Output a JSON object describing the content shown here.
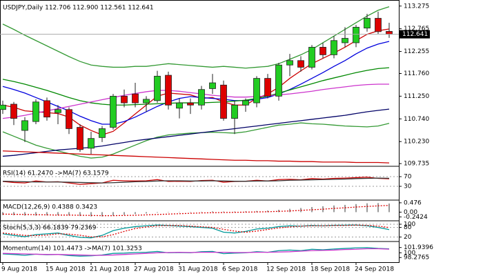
{
  "chart_data": [
    {
      "type": "candlestick",
      "title": "USDJPY,Daily  112.706 112.900 112.561 112.641",
      "categories": [
        "9 Aug 2018",
        null,
        null,
        null,
        "15 Aug 2018",
        null,
        null,
        null,
        "21 Aug 2018",
        null,
        null,
        null,
        "27 Aug 2018",
        null,
        null,
        null,
        "31 Aug 2018",
        null,
        null,
        null,
        "6 Sep 2018",
        null,
        null,
        null,
        "12 Sep 2018",
        null,
        null,
        null,
        "18 Sep 2018",
        null,
        null,
        null,
        "24 Sep 2018",
        null,
        null,
        null
      ],
      "open": [
        110.95,
        111.07,
        110.48,
        110.68,
        111.15,
        110.88,
        110.95,
        110.55,
        110.08,
        110.32,
        110.55,
        111.25,
        111.3,
        111.1,
        111.15,
        111.72,
        110.98,
        111.1,
        111.05,
        111.42,
        111.5,
        110.75,
        111.05,
        111.1,
        111.65,
        111.25,
        111.95,
        112.05,
        111.9,
        112.35,
        112.18,
        112.45,
        112.45,
        112.78,
        113.0,
        112.706
      ],
      "high": [
        111.15,
        111.12,
        110.78,
        111.18,
        111.22,
        111.05,
        111.0,
        110.62,
        110.45,
        110.58,
        111.3,
        111.4,
        111.55,
        111.25,
        111.82,
        111.8,
        111.2,
        111.2,
        111.48,
        111.75,
        111.6,
        111.15,
        111.2,
        111.7,
        111.75,
        112.0,
        112.2,
        112.15,
        112.4,
        112.45,
        112.6,
        112.8,
        112.85,
        113.1,
        113.15,
        112.9
      ],
      "low": [
        110.85,
        110.6,
        110.22,
        110.62,
        110.7,
        110.62,
        110.4,
        110.0,
        109.95,
        110.22,
        110.5,
        111.0,
        111.0,
        110.9,
        111.1,
        110.95,
        110.75,
        110.85,
        110.95,
        111.3,
        110.7,
        110.4,
        110.9,
        111.0,
        111.2,
        111.15,
        111.7,
        111.8,
        111.85,
        112.1,
        112.1,
        112.35,
        112.35,
        112.7,
        112.65,
        112.561
      ],
      "close": [
        111.05,
        110.75,
        110.7,
        111.12,
        110.78,
        110.95,
        110.52,
        110.05,
        110.3,
        110.52,
        111.25,
        111.1,
        111.1,
        111.18,
        111.7,
        111.05,
        111.1,
        111.05,
        111.4,
        111.55,
        110.75,
        111.05,
        111.15,
        111.65,
        111.25,
        111.95,
        112.05,
        111.9,
        112.35,
        112.18,
        112.5,
        112.55,
        112.8,
        113.0,
        112.7,
        112.641
      ],
      "up_color": "#22cc22",
      "down_color": "#dd0000",
      "overlays": [
        {
          "color": "#339933",
          "values": [
            112.87,
            112.75,
            112.62,
            112.5,
            112.38,
            112.26,
            112.14,
            112.03,
            111.95,
            111.92,
            111.9,
            111.9,
            111.92,
            111.92,
            111.95,
            111.98,
            111.96,
            111.94,
            111.92,
            111.9,
            111.92,
            111.9,
            111.88,
            111.9,
            111.92,
            111.98,
            112.08,
            112.18,
            112.3,
            112.45,
            112.6,
            112.75,
            112.9,
            113.05,
            113.18,
            113.26
          ]
        },
        {
          "color": "#339933",
          "values": [
            110.45,
            110.35,
            110.25,
            110.15,
            110.08,
            110.02,
            109.96,
            109.9,
            109.86,
            109.88,
            109.95,
            110.05,
            110.15,
            110.25,
            110.33,
            110.38,
            110.4,
            110.42,
            110.43,
            110.44,
            110.43,
            110.42,
            110.45,
            110.5,
            110.55,
            110.6,
            110.62,
            110.65,
            110.63,
            110.62,
            110.6,
            110.58,
            110.57,
            110.56,
            110.58,
            110.64
          ]
        },
        {
          "color": "#cc0000",
          "values": [
            111.05,
            111.0,
            110.92,
            110.9,
            110.88,
            110.86,
            110.78,
            110.6,
            110.48,
            110.38,
            110.46,
            110.65,
            110.85,
            111.05,
            111.25,
            111.32,
            111.3,
            111.28,
            111.2,
            111.22,
            111.12,
            111.05,
            111.05,
            111.2,
            111.3,
            111.45,
            111.65,
            111.82,
            111.98,
            112.1,
            112.22,
            112.35,
            112.5,
            112.64,
            112.72,
            112.76
          ]
        },
        {
          "color": "#0000dd",
          "values": [
            111.47,
            111.4,
            111.32,
            111.22,
            111.12,
            111.02,
            110.92,
            110.8,
            110.7,
            110.62,
            110.62,
            110.68,
            110.78,
            110.9,
            111.02,
            111.12,
            111.2,
            111.24,
            111.22,
            111.2,
            111.18,
            111.15,
            111.15,
            111.18,
            111.22,
            111.3,
            111.4,
            111.52,
            111.65,
            111.78,
            111.92,
            112.05,
            112.2,
            112.33,
            112.42,
            112.48
          ]
        },
        {
          "color": "#008800",
          "values": [
            111.63,
            111.58,
            111.52,
            111.45,
            111.38,
            111.3,
            111.22,
            111.15,
            111.1,
            111.07,
            111.05,
            111.05,
            111.06,
            111.07,
            111.08,
            111.09,
            111.1,
            111.1,
            111.1,
            111.11,
            111.12,
            111.14,
            111.16,
            111.2,
            111.25,
            111.32,
            111.39,
            111.46,
            111.53,
            111.6,
            111.66,
            111.72,
            111.78,
            111.83,
            111.87,
            111.89
          ]
        },
        {
          "color": "#cc33cc",
          "values": [
            110.75,
            110.78,
            110.82,
            110.87,
            110.92,
            110.97,
            111.02,
            111.07,
            111.12,
            111.17,
            111.22,
            111.27,
            111.31,
            111.35,
            111.38,
            111.38,
            111.36,
            111.33,
            111.3,
            111.27,
            111.25,
            111.23,
            111.23,
            111.24,
            111.26,
            111.28,
            111.3,
            111.33,
            111.36,
            111.4,
            111.43,
            111.46,
            111.49,
            111.51,
            111.52,
            111.52
          ]
        },
        {
          "color": "#000066",
          "values": [
            109.9,
            109.92,
            109.95,
            109.98,
            110.01,
            110.04,
            110.06,
            110.08,
            110.1,
            110.13,
            110.17,
            110.21,
            110.25,
            110.28,
            110.31,
            110.34,
            110.37,
            110.4,
            110.43,
            110.46,
            110.49,
            110.52,
            110.55,
            110.58,
            110.61,
            110.64,
            110.67,
            110.7,
            110.73,
            110.76,
            110.79,
            110.82,
            110.86,
            110.9,
            110.93,
            110.96
          ]
        },
        {
          "color": "#cc0000",
          "values": [
            110.02,
            110.01,
            110.0,
            109.99,
            109.98,
            109.97,
            109.96,
            109.95,
            109.94,
            109.93,
            109.92,
            109.91,
            109.9,
            109.89,
            109.88,
            109.87,
            109.86,
            109.85,
            109.84,
            109.83,
            109.82,
            109.81,
            109.81,
            109.8,
            109.8,
            109.79,
            109.79,
            109.78,
            109.78,
            109.77,
            109.77,
            109.77,
            109.76,
            109.76,
            109.76,
            109.75
          ]
        }
      ],
      "ylim": [
        109.69,
        113.38
      ],
      "yticks": [
        113.275,
        112.765,
        112.255,
        {
          "value": 111.76,
          "label": "111.760"
        },
        {
          "value": 111.25,
          "label": "111.250"
        },
        {
          "value": 110.74,
          "label": "110.740"
        },
        {
          "value": 110.23,
          "label": "110.230"
        },
        109.735
      ]
    },
    {
      "type": "line",
      "title": "RSI(14) 61.2470 ->MA(7) 63.1579",
      "ylim": [
        -27,
        110
      ],
      "yticks": [
        70,
        30
      ],
      "grid": true,
      "series": [
        {
          "color": "#cc0000",
          "values": [
            50,
            46,
            44,
            52,
            48,
            49,
            44,
            38,
            41,
            44,
            55,
            53,
            52,
            53,
            58,
            50,
            51,
            50,
            54,
            55,
            47,
            50,
            51,
            55,
            52,
            58,
            59,
            57,
            62,
            60,
            63,
            64,
            66,
            68,
            63,
            61.247
          ]
        },
        {
          "color": "#333333",
          "values": [
            51,
            50,
            49,
            48,
            48,
            48,
            47,
            46,
            45,
            44,
            45,
            47,
            49,
            50,
            52,
            53,
            53,
            52,
            52,
            53,
            52,
            51,
            51,
            52,
            52,
            53,
            55,
            56,
            57,
            58,
            59,
            60,
            62,
            63,
            64,
            63.1579
          ]
        }
      ]
    },
    {
      "type": "macd",
      "title": "MACD(12,26,9) 0.4388 0.3423",
      "ylim": [
        -0.442,
        0.578
      ],
      "yticks": [
        0.476,
        {
          "value": 0,
          "label": "0.00"
        },
        -0.2424
      ],
      "grid": false,
      "series": [
        {
          "type": "bar",
          "color": "#999999",
          "values": [
            -0.15,
            -0.16,
            -0.18,
            -0.18,
            -0.17,
            -0.16,
            -0.17,
            -0.2,
            -0.22,
            -0.22,
            -0.18,
            -0.14,
            -0.1,
            -0.07,
            -0.03,
            -0.01,
            0.0,
            0.01,
            0.02,
            0.04,
            0.03,
            0.03,
            0.04,
            0.06,
            0.08,
            0.12,
            0.17,
            0.21,
            0.26,
            0.3,
            0.34,
            0.37,
            0.41,
            0.45,
            0.46,
            0.4388
          ]
        },
        {
          "type": "line",
          "dashed": true,
          "color": "#dd0000",
          "values": [
            -0.1,
            -0.11,
            -0.12,
            -0.13,
            -0.14,
            -0.15,
            -0.15,
            -0.16,
            -0.17,
            -0.18,
            -0.18,
            -0.17,
            -0.16,
            -0.14,
            -0.12,
            -0.1,
            -0.08,
            -0.06,
            -0.04,
            -0.03,
            -0.02,
            -0.01,
            0.0,
            0.01,
            0.02,
            0.04,
            0.06,
            0.09,
            0.12,
            0.15,
            0.19,
            0.22,
            0.26,
            0.29,
            0.32,
            0.3423
          ]
        }
      ]
    },
    {
      "type": "line",
      "title": "Stoch(5,3,3) 66.1839 79.2369",
      "ylim": [
        -8,
        117
      ],
      "yticks": [
        100,
        80,
        20
      ],
      "grid": true,
      "series": [
        {
          "color": "#009999",
          "values": [
            40,
            30,
            22,
            35,
            40,
            45,
            30,
            18,
            15,
            30,
            60,
            75,
            85,
            90,
            95,
            92,
            88,
            85,
            80,
            75,
            50,
            45,
            55,
            70,
            75,
            85,
            90,
            88,
            92,
            90,
            93,
            94,
            95,
            90,
            80,
            66.1839
          ]
        },
        {
          "color": "#dd0000",
          "dashed": true,
          "values": [
            45,
            38,
            30,
            29,
            32,
            40,
            38,
            31,
            21,
            21,
            35,
            55,
            73,
            83,
            90,
            92,
            92,
            88,
            84,
            80,
            68,
            57,
            50,
            57,
            67,
            77,
            83,
            88,
            90,
            90,
            92,
            92,
            94,
            93,
            88,
            79.2369
          ]
        }
      ]
    },
    {
      "type": "line",
      "title": "Momentum(14) 101.4473 ->MA(7) 101.3253",
      "ylim": [
        96.57,
        103.89
      ],
      "yticks": [
        101.9396,
        100,
        98.2765
      ],
      "grid": false,
      "series": [
        {
          "color": "#009999",
          "values": [
            99.6,
            99.4,
            99.1,
            99.5,
            99.3,
            99.4,
            99.0,
            98.8,
            98.9,
            99.2,
            99.8,
            99.9,
            100.1,
            100.2,
            100.5,
            100.0,
            100.1,
            100.0,
            100.4,
            100.5,
            99.7,
            99.9,
            100.0,
            100.4,
            100.2,
            100.8,
            101.0,
            100.8,
            101.3,
            101.1,
            101.4,
            101.6,
            101.8,
            101.9,
            101.6,
            101.4473
          ]
        },
        {
          "color": "#cc33cc",
          "values": [
            99.8,
            99.7,
            99.6,
            99.5,
            99.4,
            99.4,
            99.3,
            99.2,
            99.1,
            99.1,
            99.2,
            99.4,
            99.6,
            99.8,
            100.0,
            100.1,
            100.2,
            100.1,
            100.2,
            100.2,
            100.2,
            100.1,
            100.1,
            100.2,
            100.2,
            100.3,
            100.4,
            100.6,
            100.8,
            100.9,
            101.0,
            101.2,
            101.3,
            101.5,
            101.5,
            101.3253
          ]
        }
      ]
    }
  ]
}
